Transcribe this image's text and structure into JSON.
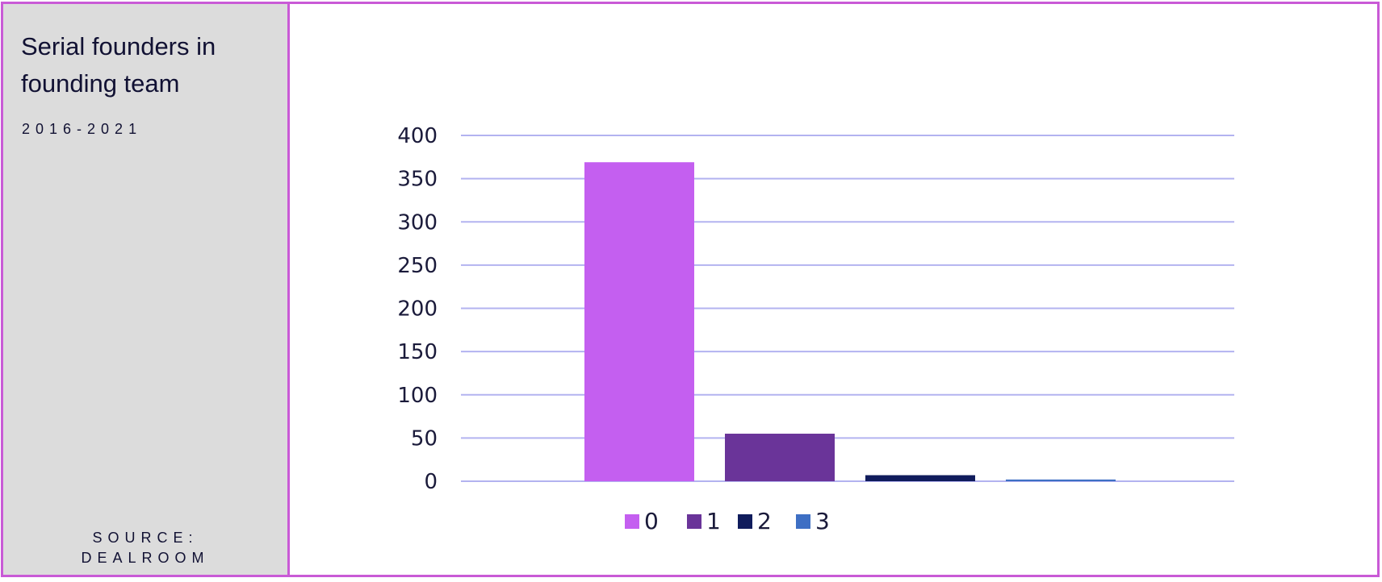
{
  "sidebar": {
    "title": "Serial founders in founding team",
    "subtitle": "2016-2021",
    "source_line1": "SOURCE:",
    "source_line2": "DEALROOM"
  },
  "colors": {
    "frame": "#c95ad6",
    "sidebar_bg": "#dcdcdc",
    "gridline": "#b3b3f0",
    "text": "#1a1a3a"
  },
  "chart_data": {
    "type": "bar",
    "title": "",
    "xlabel": "",
    "ylabel": "",
    "ylim": [
      0,
      400
    ],
    "yticks": [
      0,
      50,
      100,
      150,
      200,
      250,
      300,
      350,
      400
    ],
    "grid": true,
    "legend_position": "bottom",
    "series": [
      {
        "name": "0",
        "value": 369,
        "color": "#c45ff0"
      },
      {
        "name": "1",
        "value": 55,
        "color": "#6a3499"
      },
      {
        "name": "2",
        "value": 7,
        "color": "#101c5c"
      },
      {
        "name": "3",
        "value": 2,
        "color": "#3e6fc4"
      }
    ]
  }
}
